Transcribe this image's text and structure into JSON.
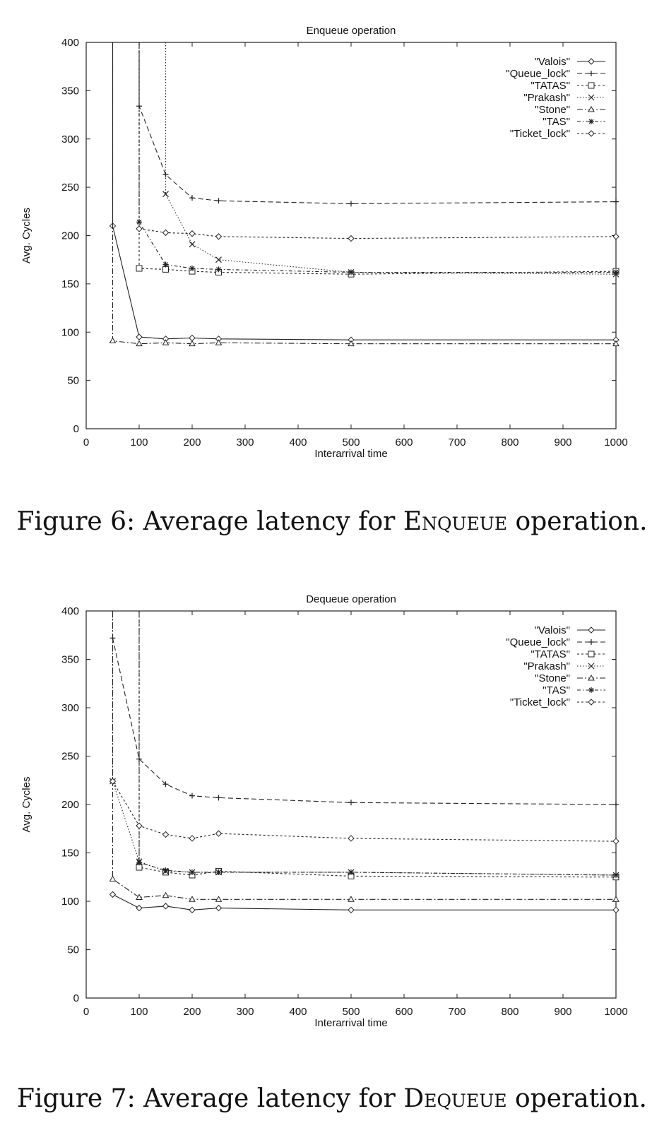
{
  "figures": [
    {
      "caption_prefix": "Figure 6: Average latency for ",
      "caption_op": "Enqueue",
      "caption_suffix": " operation."
    },
    {
      "caption_prefix": "Figure 7: Average latency for ",
      "caption_op": "Dequeue",
      "caption_suffix": " operation."
    }
  ],
  "chart_data": [
    {
      "type": "line",
      "title": "Enqueue operation",
      "xlabel": "Interarrival time",
      "ylabel": "Avg. Cycles",
      "xlim": [
        0,
        1000
      ],
      "ylim": [
        0,
        400
      ],
      "xticks": [
        0,
        100,
        200,
        300,
        400,
        500,
        600,
        700,
        800,
        900,
        1000
      ],
      "yticks": [
        0,
        50,
        100,
        150,
        200,
        250,
        300,
        350,
        400
      ],
      "grid": false,
      "legend": "top-right",
      "series": [
        {
          "name": "\"Valois\"",
          "style": "solid",
          "marker": "diamond",
          "points": [
            [
              50,
              400
            ],
            [
              50,
              210
            ],
            [
              100,
              95
            ],
            [
              150,
              93
            ],
            [
              200,
              94
            ],
            [
              250,
              93
            ],
            [
              500,
              92
            ],
            [
              1000,
              92
            ]
          ]
        },
        {
          "name": "\"Queue_lock\"",
          "style": "dash",
          "marker": "plus",
          "points": [
            [
              100,
              400
            ],
            [
              100,
              334
            ],
            [
              150,
              263
            ],
            [
              200,
              239
            ],
            [
              250,
              236
            ],
            [
              500,
              233
            ],
            [
              1000,
              235
            ]
          ]
        },
        {
          "name": "\"TATAS\"",
          "style": "dot-short",
          "marker": "square",
          "points": [
            [
              100,
              400
            ],
            [
              100,
              166
            ],
            [
              150,
              165
            ],
            [
              200,
              163
            ],
            [
              250,
              162
            ],
            [
              500,
              160
            ],
            [
              1000,
              163
            ]
          ]
        },
        {
          "name": "\"Prakash\"",
          "style": "dot",
          "marker": "x",
          "points": [
            [
              150,
              400
            ],
            [
              150,
              243
            ],
            [
              200,
              191
            ],
            [
              250,
              175
            ],
            [
              500,
              162
            ],
            [
              1000,
              160
            ]
          ]
        },
        {
          "name": "\"Stone\"",
          "style": "dashdot",
          "marker": "triangle",
          "points": [
            [
              50,
              400
            ],
            [
              50,
              91
            ],
            [
              100,
              88
            ],
            [
              150,
              89
            ],
            [
              200,
              88
            ],
            [
              250,
              89
            ],
            [
              500,
              88
            ],
            [
              1000,
              88
            ]
          ]
        },
        {
          "name": "\"TAS\"",
          "style": "dashdot2",
          "marker": "star",
          "points": [
            [
              100,
              400
            ],
            [
              100,
              214
            ],
            [
              150,
              170
            ],
            [
              200,
              166
            ],
            [
              250,
              165
            ],
            [
              500,
              162
            ],
            [
              1000,
              162
            ]
          ]
        },
        {
          "name": "\"Ticket_lock\"",
          "style": "dot-short",
          "marker": "diamond",
          "points": [
            [
              100,
              400
            ],
            [
              100,
              207
            ],
            [
              150,
              203
            ],
            [
              200,
              202
            ],
            [
              250,
              199
            ],
            [
              500,
              197
            ],
            [
              1000,
              199
            ]
          ]
        }
      ]
    },
    {
      "type": "line",
      "title": "Dequeue operation",
      "xlabel": "Interarrival time",
      "ylabel": "Avg. Cycles",
      "xlim": [
        0,
        1000
      ],
      "ylim": [
        0,
        400
      ],
      "xticks": [
        0,
        100,
        200,
        300,
        400,
        500,
        600,
        700,
        800,
        900,
        1000
      ],
      "yticks": [
        0,
        50,
        100,
        150,
        200,
        250,
        300,
        350,
        400
      ],
      "grid": false,
      "legend": "top-right",
      "series": [
        {
          "name": "\"Valois\"",
          "style": "solid",
          "marker": "diamond",
          "points": [
            [
              50,
              107
            ],
            [
              100,
              93
            ],
            [
              150,
              95
            ],
            [
              200,
              91
            ],
            [
              250,
              93
            ],
            [
              500,
              91
            ],
            [
              1000,
              91
            ]
          ]
        },
        {
          "name": "\"Queue_lock\"",
          "style": "dash",
          "marker": "plus",
          "points": [
            [
              50,
              372
            ],
            [
              100,
              247
            ],
            [
              150,
              221
            ],
            [
              200,
              209
            ],
            [
              250,
              207
            ],
            [
              500,
              202
            ],
            [
              1000,
              200
            ]
          ]
        },
        {
          "name": "\"TATAS\"",
          "style": "dot-short",
          "marker": "square",
          "points": [
            [
              100,
              400
            ],
            [
              100,
              135
            ],
            [
              150,
              130
            ],
            [
              200,
              127
            ],
            [
              250,
              131
            ],
            [
              500,
              126
            ],
            [
              1000,
              125
            ]
          ]
        },
        {
          "name": "\"Prakash\"",
          "style": "dot",
          "marker": "x",
          "points": [
            [
              50,
              400
            ],
            [
              50,
              224
            ],
            [
              100,
              141
            ],
            [
              150,
              131
            ],
            [
              200,
              130
            ],
            [
              250,
              130
            ],
            [
              500,
              130
            ],
            [
              1000,
              127
            ]
          ]
        },
        {
          "name": "\"Stone\"",
          "style": "dashdot",
          "marker": "triangle",
          "points": [
            [
              50,
              400
            ],
            [
              50,
              123
            ],
            [
              100,
              104
            ],
            [
              150,
              106
            ],
            [
              200,
              102
            ],
            [
              250,
              102
            ],
            [
              500,
              102
            ],
            [
              1000,
              102
            ]
          ]
        },
        {
          "name": "\"TAS\"",
          "style": "dashdot2",
          "marker": "star",
          "points": [
            [
              100,
              400
            ],
            [
              100,
              140
            ],
            [
              150,
              132
            ],
            [
              200,
              130
            ],
            [
              250,
              130
            ],
            [
              500,
              130
            ],
            [
              1000,
              127
            ]
          ]
        },
        {
          "name": "\"Ticket_lock\"",
          "style": "dot-short",
          "marker": "diamond",
          "points": [
            [
              50,
              224
            ],
            [
              100,
              178
            ],
            [
              150,
              169
            ],
            [
              200,
              165
            ],
            [
              250,
              170
            ],
            [
              500,
              165
            ],
            [
              1000,
              162
            ]
          ]
        }
      ]
    }
  ]
}
